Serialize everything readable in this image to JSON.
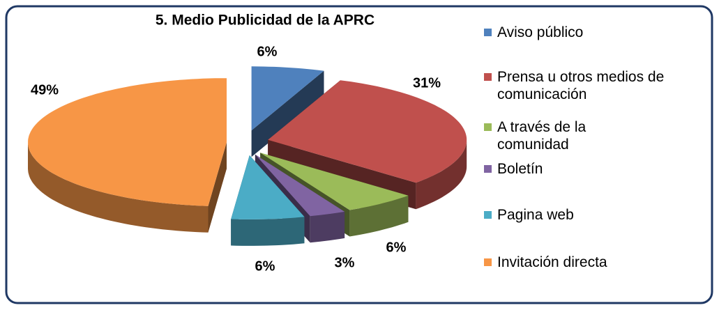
{
  "chart_data": {
    "type": "pie",
    "title": "5. Medio Publicidad de la APRC",
    "categories": [
      "Aviso público",
      "Prensa u otros medios de comunicación",
      "A través de la comunidad",
      "Boletín",
      "Pagina web",
      "Invitación directa"
    ],
    "values": [
      6,
      31,
      6,
      3,
      6,
      49
    ],
    "value_labels": [
      "6%",
      "31%",
      "6%",
      "3%",
      "6%",
      "49%"
    ],
    "colors": [
      "#4f81bd",
      "#c0504d",
      "#9bbb59",
      "#8064a2",
      "#4bacc6",
      "#f79646"
    ],
    "legend": "right"
  }
}
